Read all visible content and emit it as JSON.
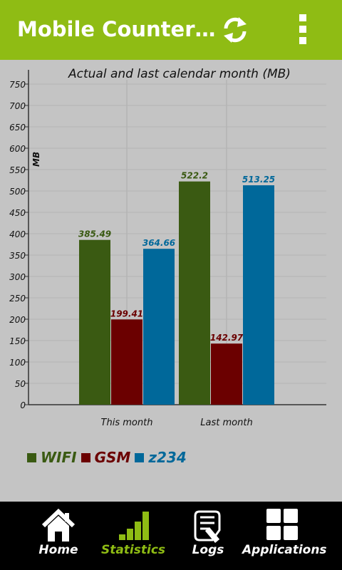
{
  "app": {
    "title": "Mobile Counter…"
  },
  "colors": {
    "accent": "#8fbc14",
    "wifi": "#3a5a12",
    "gsm": "#6b0000",
    "z234": "#00689a"
  },
  "nav": {
    "items": [
      {
        "label": "Home",
        "icon": "home-icon",
        "active": false
      },
      {
        "label": "Statistics",
        "icon": "bar-chart-icon",
        "active": true
      },
      {
        "label": "Logs",
        "icon": "logs-icon",
        "active": false
      },
      {
        "label": "Applications",
        "icon": "applications-icon",
        "active": false
      }
    ]
  },
  "chart_data": {
    "type": "bar",
    "title": "Actual and last calendar month (MB)",
    "ylabel": "MB",
    "xlabel": "",
    "categories": [
      "This month",
      "Last month"
    ],
    "series": [
      {
        "name": "WIFI",
        "values": [
          385.49,
          522.2
        ],
        "labels": [
          "385.49",
          "522.2"
        ]
      },
      {
        "name": "GSM",
        "values": [
          199.41,
          142.97
        ],
        "labels": [
          "199.41",
          "142.97"
        ]
      },
      {
        "name": "z234",
        "values": [
          364.66,
          513.25
        ],
        "labels": [
          "364.66",
          "513.25"
        ]
      }
    ],
    "ylim": [
      0,
      750
    ],
    "yticks": [
      "0",
      "50",
      "100",
      "150",
      "200",
      "250",
      "300",
      "350",
      "400",
      "450",
      "500",
      "550",
      "600",
      "650",
      "700",
      "750"
    ],
    "grid": true,
    "legend_position": "bottom-left"
  }
}
